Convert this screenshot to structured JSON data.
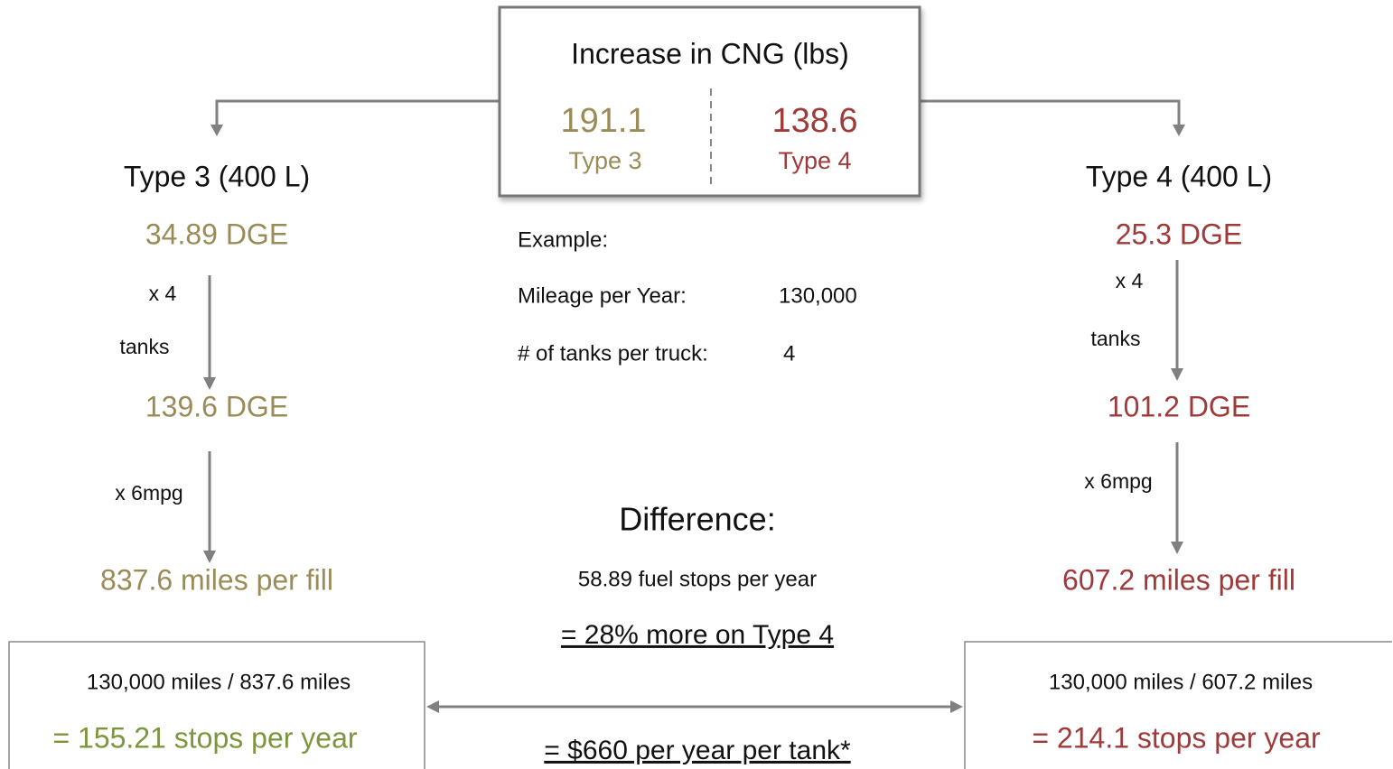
{
  "top_box": {
    "title": "Increase in CNG (lbs)",
    "left_value": "191.1",
    "left_label": "Type 3",
    "right_value": "138.6",
    "right_label": "Type 4"
  },
  "left": {
    "title": "Type 3 (400 L)",
    "dge": "34.89 DGE",
    "mult1": "x 4",
    "mult1_unit": "tanks",
    "total": "139.6 DGE",
    "mult2": "x 6mpg",
    "range": "837.6 miles per fill",
    "calc": "130,000 miles / 837.6 miles",
    "stops": "= 155.21 stops per year"
  },
  "right": {
    "title": "Type 4 (400 L)",
    "dge": "25.3 DGE",
    "mult1": "x 4",
    "mult1_unit": "tanks",
    "total": "101.2 DGE",
    "mult2": "x 6mpg",
    "range": "607.2 miles per fill",
    "calc": "130,000 miles / 607.2 miles",
    "stops": "= 214.1 stops per year"
  },
  "example": {
    "heading": "Example:",
    "mileage_label": "Mileage per Year:",
    "mileage": "130,000",
    "tanks_label": "# of tanks per truck:",
    "tanks": "4"
  },
  "difference": {
    "heading": "Difference:",
    "stops": "58.89 fuel stops per year",
    "percent": "= 28% more on Type 4",
    "cost": "= $660 per year per tank*"
  }
}
